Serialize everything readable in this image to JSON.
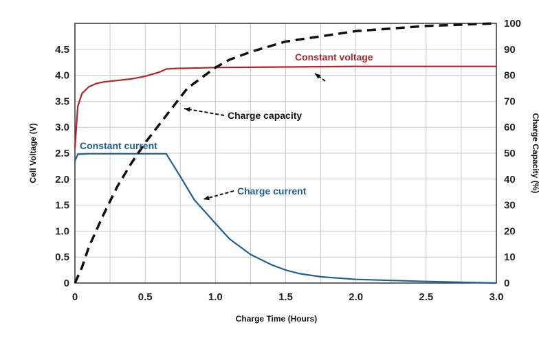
{
  "chart_data": {
    "type": "line",
    "xlabel": "Charge Time (Hours)",
    "ylabel": "Cell Voltage (V)",
    "y2label": "Charge Capacity (%)",
    "xlim": [
      0,
      3.0
    ],
    "ylim": [
      0,
      5.0
    ],
    "y2lim": [
      0,
      100
    ],
    "grid": true,
    "x_ticks": [
      "0",
      "0.5",
      "1.0",
      "1.5",
      "2.0",
      "2.5",
      "3.0"
    ],
    "y_ticks": [
      "0",
      "0.5",
      "1.0",
      "1.5",
      "2.0",
      "2.5",
      "3.0",
      "3.5",
      "4.0",
      "4.5"
    ],
    "y2_ticks": [
      "0",
      "10",
      "20",
      "30",
      "40",
      "50",
      "60",
      "70",
      "80",
      "90",
      "100"
    ],
    "series": [
      {
        "key": "voltage",
        "axis": "left",
        "color": "#b0252b",
        "style": "solid",
        "x": [
          0.0,
          0.02,
          0.05,
          0.1,
          0.15,
          0.2,
          0.3,
          0.4,
          0.5,
          0.6,
          0.65,
          0.7,
          1.0,
          1.5,
          2.0,
          2.5,
          3.0
        ],
        "y": [
          2.6,
          3.4,
          3.65,
          3.78,
          3.84,
          3.87,
          3.9,
          3.93,
          3.98,
          4.06,
          4.12,
          4.13,
          4.15,
          4.16,
          4.17,
          4.17,
          4.17
        ]
      },
      {
        "key": "current",
        "axis": "left",
        "color": "#1f5f96",
        "style": "solid",
        "x": [
          0.0,
          0.02,
          0.1,
          0.3,
          0.5,
          0.65,
          0.75,
          0.85,
          1.0,
          1.1,
          1.25,
          1.4,
          1.5,
          1.6,
          1.75,
          2.0,
          2.25,
          2.5,
          3.0
        ],
        "y": [
          2.35,
          2.48,
          2.49,
          2.49,
          2.49,
          2.49,
          2.05,
          1.6,
          1.15,
          0.85,
          0.55,
          0.35,
          0.25,
          0.18,
          0.12,
          0.07,
          0.05,
          0.03,
          0.0
        ]
      },
      {
        "key": "capacity",
        "axis": "right",
        "color": "#111111",
        "style": "dashed",
        "x": [
          0.0,
          0.05,
          0.1,
          0.2,
          0.3,
          0.4,
          0.5,
          0.6,
          0.7,
          0.8,
          0.9,
          1.0,
          1.1,
          1.25,
          1.5,
          1.75,
          2.0,
          2.5,
          3.0
        ],
        "y": [
          0,
          6,
          14,
          26,
          37,
          46,
          54,
          61,
          68,
          75,
          79,
          83,
          86,
          89,
          93,
          95,
          97,
          99,
          100
        ]
      }
    ],
    "annotations": [
      {
        "key": "cv",
        "text": "Constant voltage",
        "color": "#b0252b"
      },
      {
        "key": "cc",
        "text": "Constant current",
        "color": "#1f5f96"
      },
      {
        "key": "cap",
        "text": "Charge capacity",
        "color": "#111111"
      },
      {
        "key": "cur",
        "text": "Charge current",
        "color": "#1f5f96"
      }
    ]
  }
}
